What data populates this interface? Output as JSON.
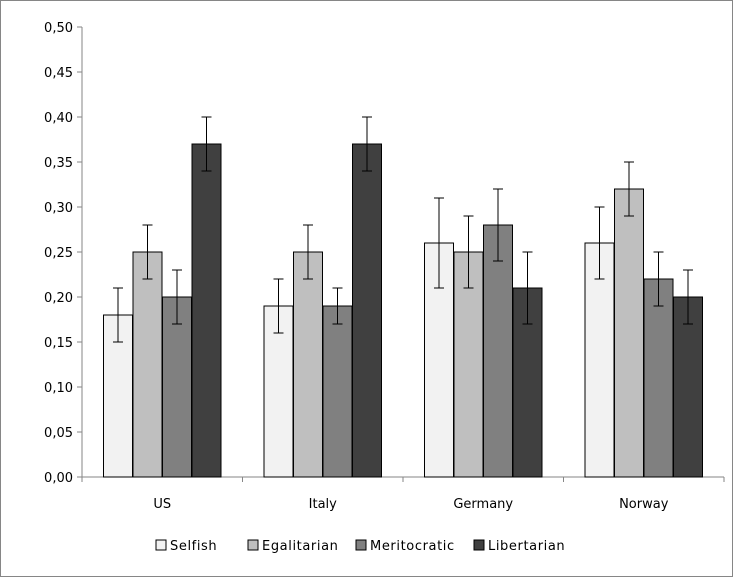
{
  "chart_data": {
    "type": "bar",
    "categories": [
      "US",
      "Italy",
      "Germany",
      "Norway"
    ],
    "series": [
      {
        "name": "Selfish",
        "color": "#f2f2f2",
        "values": [
          0.18,
          0.19,
          0.26,
          0.26
        ],
        "err_low": [
          0.15,
          0.16,
          0.21,
          0.22
        ],
        "err_high": [
          0.21,
          0.22,
          0.31,
          0.3
        ]
      },
      {
        "name": "Egalitarian",
        "color": "#bfbfbf",
        "values": [
          0.25,
          0.25,
          0.25,
          0.32
        ],
        "err_low": [
          0.22,
          0.22,
          0.21,
          0.29
        ],
        "err_high": [
          0.28,
          0.28,
          0.29,
          0.35
        ]
      },
      {
        "name": "Meritocratic",
        "color": "#808080",
        "values": [
          0.2,
          0.19,
          0.28,
          0.22
        ],
        "err_low": [
          0.17,
          0.17,
          0.24,
          0.19
        ],
        "err_high": [
          0.23,
          0.21,
          0.32,
          0.25
        ]
      },
      {
        "name": "Libertarian",
        "color": "#404040",
        "values": [
          0.37,
          0.37,
          0.21,
          0.2
        ],
        "err_low": [
          0.34,
          0.34,
          0.17,
          0.17
        ],
        "err_high": [
          0.4,
          0.4,
          0.25,
          0.23
        ]
      }
    ],
    "ylim": [
      0,
      0.5
    ],
    "yticks": [
      0,
      0.05,
      0.1,
      0.15,
      0.2,
      0.25,
      0.3,
      0.35,
      0.4,
      0.45,
      0.5
    ],
    "ytick_labels": [
      "0,00",
      "0,05",
      "0,10",
      "0,15",
      "0,20",
      "0,25",
      "0,30",
      "0,35",
      "0,40",
      "0,45",
      "0,50"
    ],
    "grid": false,
    "legend": "bottom",
    "xlabel": "",
    "ylabel": "",
    "title": ""
  }
}
